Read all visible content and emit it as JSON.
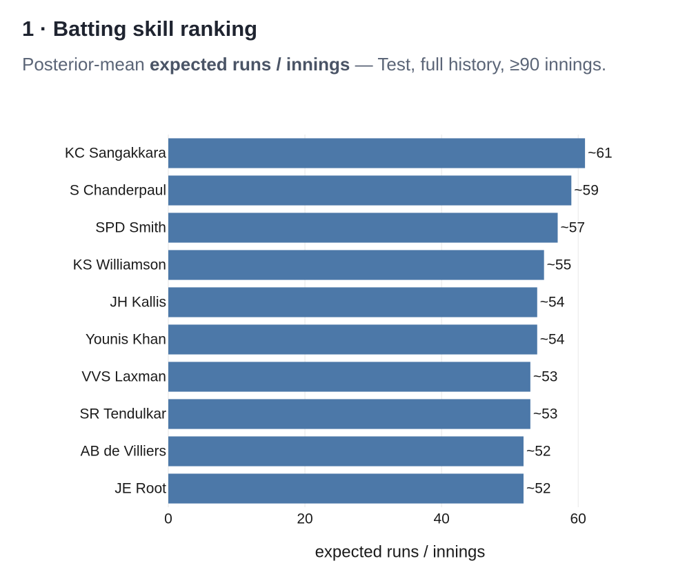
{
  "chart_data": {
    "type": "bar",
    "orientation": "horizontal",
    "title": "1 · Batting skill ranking",
    "subtitle_parts": [
      "Posterior-mean",
      "expected runs / innings",
      "— Test, full history, ≥90 innings."
    ],
    "xlabel": "expected runs / innings",
    "categories": [
      "KC Sangakkara",
      "S Chanderpaul",
      "SPD Smith",
      "KS Williamson",
      "JH Kallis",
      "Younis Khan",
      "VVS Laxman",
      "SR Tendulkar",
      "AB de Villiers",
      "JE Root"
    ],
    "values": [
      61,
      59,
      57,
      55,
      54,
      54,
      53,
      53,
      52,
      52
    ],
    "value_labels": [
      "~61",
      "~59",
      "~57",
      "~55",
      "~54",
      "~54",
      "~53",
      "~53",
      "~52",
      "~52"
    ],
    "color": "#4c78a8",
    "xlim": [
      0,
      62
    ],
    "xticks": [
      0,
      20,
      40,
      60
    ],
    "grid": true
  }
}
